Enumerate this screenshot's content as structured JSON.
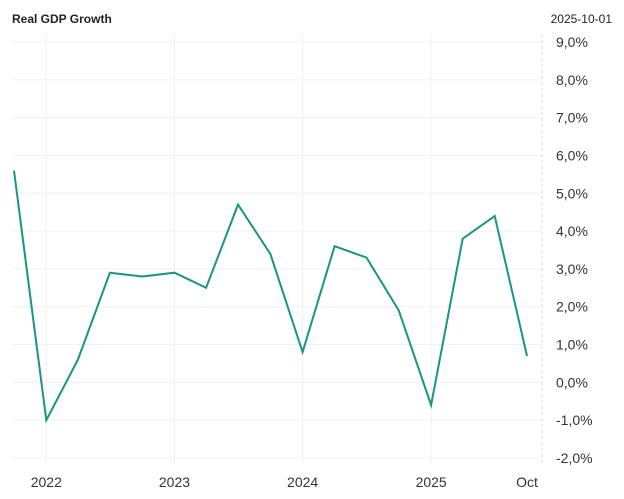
{
  "header": {
    "title": "Real GDP Growth",
    "date": "2025-10-01"
  },
  "chart_data": {
    "type": "line",
    "title": "Real GDP Growth",
    "xlabel": "",
    "ylabel": "",
    "ylim": [
      -2.0,
      9.0
    ],
    "y_ticks": [
      "9,0%",
      "8,0%",
      "7,0%",
      "6,0%",
      "5,0%",
      "4,0%",
      "3,0%",
      "2,0%",
      "1,0%",
      "0,0%",
      "-1,0%",
      "-2,0%"
    ],
    "y_tick_values": [
      9,
      8,
      7,
      6,
      5,
      4,
      3,
      2,
      1,
      0,
      -1,
      -2
    ],
    "x_ticks": [
      "2022",
      "2023",
      "2024",
      "2025",
      "Oct"
    ],
    "x_tick_dates": [
      "2022-01-01",
      "2023-01-01",
      "2024-01-01",
      "2025-01-01",
      "2025-10-01"
    ],
    "grid": true,
    "line_color": "#1a9580",
    "series": [
      {
        "x": [
          "2021-10-01",
          "2022-01-01",
          "2022-04-01",
          "2022-07-01",
          "2022-10-01",
          "2023-01-01",
          "2023-04-01",
          "2023-07-01",
          "2023-10-01",
          "2024-01-01",
          "2024-04-01",
          "2024-07-01",
          "2024-10-01",
          "2025-01-01",
          "2025-04-01",
          "2025-07-01",
          "2025-10-01"
        ],
        "values": [
          5.6,
          -1.0,
          0.6,
          2.9,
          2.8,
          2.9,
          2.5,
          4.7,
          3.4,
          0.8,
          3.6,
          3.3,
          1.9,
          -0.6,
          3.8,
          4.4,
          0.7
        ]
      }
    ]
  }
}
